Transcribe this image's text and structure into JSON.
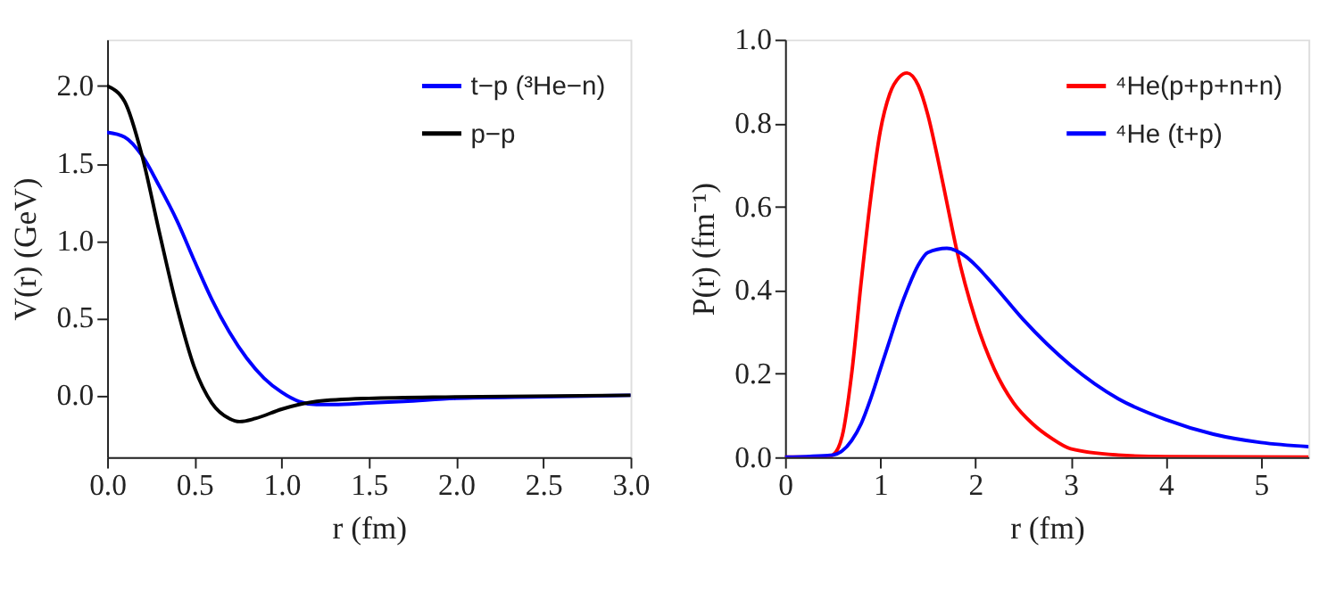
{
  "chart_data": [
    {
      "type": "line",
      "xlabel": "r (fm)",
      "ylabel": "V(r) (GeV)",
      "xlim": [
        0,
        3
      ],
      "ylim": [
        -0.4,
        2.3
      ],
      "xticks": [
        {
          "value": 0,
          "label": "0.0"
        },
        {
          "value": 0.5,
          "label": "0.5"
        },
        {
          "value": 1,
          "label": "1.0"
        },
        {
          "value": 1.5,
          "label": "1.5"
        },
        {
          "value": 2,
          "label": "2.0"
        },
        {
          "value": 2.5,
          "label": "2.5"
        },
        {
          "value": 3,
          "label": "3.0"
        }
      ],
      "yticks": [
        {
          "value": 0,
          "label": "0.0"
        },
        {
          "value": 0.5,
          "label": "0.5"
        },
        {
          "value": 1,
          "label": "1.0"
        },
        {
          "value": 1.5,
          "label": "1.5"
        },
        {
          "value": 2,
          "label": "2.0"
        }
      ],
      "grid": false,
      "legend": "top right",
      "marker": "none",
      "line_style": "solid",
      "series": [
        {
          "name": "t−p (³He−n)",
          "color": "#0000ff",
          "x": [
            0,
            0.1,
            0.2,
            0.3,
            0.4,
            0.5,
            0.6,
            0.7,
            0.8,
            0.9,
            1.0,
            1.1,
            1.2,
            1.3,
            1.5,
            1.7,
            2.0,
            2.5,
            3.0
          ],
          "values": [
            1.7,
            1.67,
            1.55,
            1.35,
            1.13,
            0.87,
            0.62,
            0.41,
            0.24,
            0.11,
            0.02,
            -0.04,
            -0.06,
            -0.06,
            -0.05,
            -0.04,
            -0.02,
            -0.01,
            0
          ]
        },
        {
          "name": "p−p",
          "color": "#000000",
          "x": [
            0,
            0.1,
            0.2,
            0.3,
            0.4,
            0.5,
            0.6,
            0.7,
            0.76,
            0.85,
            1.0,
            1.1,
            1.2,
            1.5,
            2.0,
            3.0
          ],
          "values": [
            2.0,
            1.9,
            1.55,
            1.05,
            0.57,
            0.18,
            -0.05,
            -0.15,
            -0.17,
            -0.15,
            -0.09,
            -0.06,
            -0.04,
            -0.02,
            -0.01,
            0
          ]
        }
      ]
    },
    {
      "type": "line",
      "xlabel": "r (fm)",
      "ylabel": "P(r) (fm⁻¹)",
      "xlim": [
        0,
        5.5
      ],
      "ylim": [
        0,
        1.0
      ],
      "xticks": [
        0,
        1,
        2,
        3,
        4,
        5
      ],
      "yticks": [
        {
          "value": 0,
          "label": "0.0"
        },
        0.2,
        0.4,
        0.6,
        0.8,
        {
          "value": 1,
          "label": "1.0"
        }
      ],
      "grid": false,
      "legend": "top right",
      "marker": "none",
      "line_style": "solid",
      "series": [
        {
          "name": "⁴He(p+p+n+n)",
          "color": "#ff0000",
          "x": [
            0,
            0.4,
            0.5,
            0.6,
            0.7,
            0.8,
            0.9,
            1.0,
            1.1,
            1.2,
            1.28,
            1.4,
            1.5,
            1.6,
            1.7,
            1.8,
            2.0,
            2.2,
            2.4,
            2.6,
            2.8,
            3.0,
            3.5,
            4.0,
            5.5
          ],
          "values": [
            0,
            0,
            0.005,
            0.05,
            0.2,
            0.42,
            0.62,
            0.78,
            0.87,
            0.91,
            0.92,
            0.89,
            0.82,
            0.72,
            0.61,
            0.5,
            0.33,
            0.21,
            0.13,
            0.08,
            0.045,
            0.02,
            0.005,
            0.001,
            0
          ]
        },
        {
          "name": "⁴He (t+p)",
          "color": "#0000ff",
          "x": [
            0,
            0.5,
            0.6,
            0.7,
            0.8,
            0.9,
            1.0,
            1.1,
            1.2,
            1.3,
            1.4,
            1.5,
            1.7,
            1.9,
            2.0,
            2.2,
            2.5,
            3.0,
            3.5,
            4.0,
            4.5,
            5.0,
            5.5
          ],
          "values": [
            0,
            0.005,
            0.015,
            0.04,
            0.08,
            0.14,
            0.21,
            0.28,
            0.35,
            0.41,
            0.46,
            0.49,
            0.5,
            0.48,
            0.46,
            0.41,
            0.33,
            0.22,
            0.14,
            0.09,
            0.055,
            0.035,
            0.025
          ]
        }
      ]
    }
  ]
}
